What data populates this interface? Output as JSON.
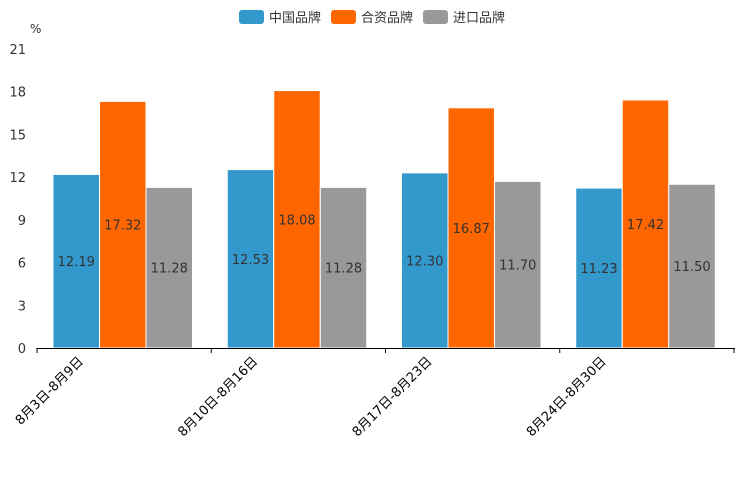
{
  "chart_data": {
    "type": "bar",
    "unit": "%",
    "categories": [
      "8月3日-8月9日",
      "8月10日-8月16日",
      "8月17日-8月23日",
      "8月24日-8月30日"
    ],
    "series": [
      {
        "name": "中国品牌",
        "color": "#3399cc",
        "values": [
          12.19,
          12.53,
          12.3,
          11.23
        ]
      },
      {
        "name": "合资品牌",
        "color": "#ff6600",
        "values": [
          17.32,
          18.08,
          16.87,
          17.42
        ]
      },
      {
        "name": "进口品牌",
        "color": "#999999",
        "values": [
          11.28,
          11.28,
          11.7,
          11.5
        ]
      }
    ],
    "data_labels": [
      [
        "12.19",
        "12.53",
        "12.30",
        "11.23"
      ],
      [
        "17.32",
        "18.08",
        "16.87",
        "17.42"
      ],
      [
        "11.28",
        "11.28",
        "11.70",
        "11.50"
      ]
    ],
    "ylim": [
      0,
      21
    ],
    "yticks": [
      "0",
      "3",
      "6",
      "9",
      "12",
      "15",
      "18",
      "21"
    ],
    "legend_position": "top-center"
  }
}
